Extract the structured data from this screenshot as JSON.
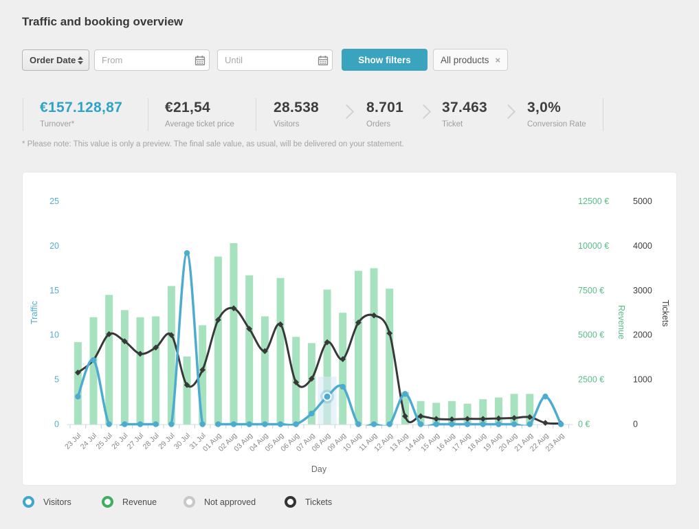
{
  "page": {
    "title": "Traffic and booking overview"
  },
  "filters": {
    "date_type_select": {
      "value": "Order Date"
    },
    "from_placeholder": "From",
    "until_placeholder": "Until",
    "show_filters_label": "Show filters",
    "product_chip": {
      "label": "All products",
      "remove_icon": "×"
    }
  },
  "kpis": [
    {
      "value": "€157.128,87",
      "label": "Turnover*",
      "highlight": true
    },
    {
      "value": "€21,54",
      "label": "Average ticket price",
      "highlight": false
    },
    {
      "value": "28.538",
      "label": "Visitors",
      "highlight": false
    },
    {
      "value": "8.701",
      "label": "Orders",
      "highlight": false
    },
    {
      "value": "37.463",
      "label": "Ticket",
      "highlight": false
    },
    {
      "value": "3,0%",
      "label": "Conversion Rate",
      "highlight": false
    }
  ],
  "kpi_separators": [
    "line",
    "line",
    "line",
    "chevron",
    "chevron",
    "chevron",
    "line"
  ],
  "footnote": "* Please note: This value is only a preview. The final sale value, as usual, will be delivered on your statement.",
  "chart_data": {
    "type": "bar+line combo",
    "xlabel": "Day",
    "categories": [
      "23 Jul",
      "24 Jul",
      "25 Jul",
      "26 Jul",
      "27 Jul",
      "28 Jul",
      "29 Jul",
      "30 Jul",
      "31 Jul",
      "01 Aug",
      "02 Aug",
      "03 Aug",
      "04 Aug",
      "05 Aug",
      "06 Aug",
      "07 Aug",
      "08 Aug",
      "09 Aug",
      "10 Aug",
      "11 Aug",
      "12 Aug",
      "13 Aug",
      "14 Aug",
      "15 Aug",
      "16 Aug",
      "17 Aug",
      "18 Aug",
      "19 Aug",
      "20 Aug",
      "21 Aug",
      "22 Aug",
      "23 Aug"
    ],
    "axes": {
      "traffic": {
        "label": "Traffic",
        "min": 0,
        "max": 25,
        "tick_labels": [
          "0",
          "5",
          "10",
          "15",
          "20",
          "25"
        ],
        "color": "#54aecb",
        "position": "left"
      },
      "revenue": {
        "label": "Revenue",
        "min": 0,
        "max": 12500,
        "tick_labels": [
          "0 €",
          "2500 €",
          "5000 €",
          "7500 €",
          "10000 €",
          "12500 €"
        ],
        "color": "#58bd88",
        "position": "right"
      },
      "tickets": {
        "label": "Tickets",
        "min": 0,
        "max": 5000,
        "tick_labels": [
          "0",
          "1000",
          "2000",
          "3000",
          "4000",
          "5000"
        ],
        "color": "#3d3d3d",
        "position": "far-right"
      }
    },
    "series": [
      {
        "name": "Revenue",
        "type": "bar",
        "axis": "revenue",
        "color": "#a6e2be",
        "values": [
          4600,
          6000,
          7250,
          6400,
          6000,
          6050,
          7750,
          3800,
          5550,
          9400,
          10150,
          8350,
          6050,
          8200,
          4900,
          4550,
          7550,
          6250,
          8600,
          8750,
          7600,
          1800,
          1300,
          1200,
          1300,
          1150,
          1400,
          1500,
          1700,
          1700,
          0,
          0
        ]
      },
      {
        "name": "Visitors",
        "type": "line",
        "axis": "traffic",
        "color": "#4dabd0",
        "values": [
          3.1,
          7.2,
          0,
          0,
          0,
          0,
          0,
          19.2,
          0,
          0,
          0,
          0,
          0,
          0,
          0,
          1.2,
          3.1,
          4.2,
          0,
          0,
          0,
          3.4,
          0,
          0,
          0,
          0,
          0,
          0,
          0,
          0,
          3.1,
          0
        ]
      },
      {
        "name": "Tickets",
        "type": "line",
        "axis": "tickets",
        "color": "#383838",
        "values": [
          1160,
          1440,
          2020,
          1860,
          1580,
          1720,
          2000,
          880,
          1220,
          2340,
          2600,
          2140,
          1640,
          2240,
          940,
          1020,
          1840,
          1460,
          2280,
          2440,
          2040,
          180,
          180,
          120,
          110,
          120,
          120,
          130,
          140,
          160,
          30,
          15
        ]
      }
    ],
    "selected_point": {
      "series": "Visitors",
      "category": "08 Aug",
      "value": 3.1
    },
    "highlight_band_color": "#d8eaf5",
    "grid": "off",
    "legend_position": "bottom"
  },
  "legend": [
    {
      "label": "Visitors",
      "color": "#3fa7c9"
    },
    {
      "label": "Revenue",
      "color": "#3fae5f"
    },
    {
      "label": "Not approved",
      "color": "#c8c8c8"
    },
    {
      "label": "Tickets",
      "color": "#343434"
    }
  ]
}
